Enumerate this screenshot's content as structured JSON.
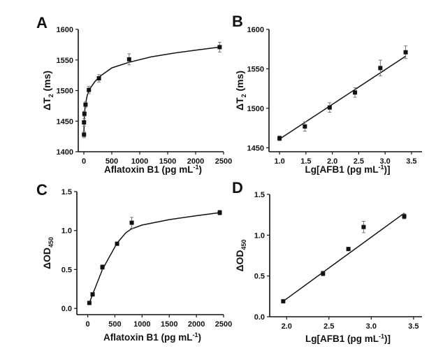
{
  "chart_data": [
    {
      "panel": "A",
      "type": "scatter",
      "xlabel": "Aflatoxin B1 (pg mL",
      "xlabel_sup": "-1",
      "xlabel_end": ")",
      "ylabel": "ΔT",
      "ylabel_sub": "2",
      "ylabel_end": " (ms)",
      "xlim": [
        -100,
        2500
      ],
      "ylim": [
        1400,
        1600
      ],
      "xticks": [
        0,
        500,
        1000,
        1500,
        2000,
        2500
      ],
      "yticks": [
        1400,
        1450,
        1500,
        1550,
        1600
      ],
      "points": [
        {
          "x": 3.3,
          "y": 1428,
          "err": 5
        },
        {
          "x": 3.3,
          "y": 1448,
          "err": 6
        },
        {
          "x": 10,
          "y": 1462,
          "err": 4
        },
        {
          "x": 30,
          "y": 1477,
          "err": 5
        },
        {
          "x": 90,
          "y": 1501,
          "err": 6
        },
        {
          "x": 270,
          "y": 1520,
          "err": 6
        },
        {
          "x": 810,
          "y": 1551,
          "err": 9
        },
        {
          "x": 2430,
          "y": 1571,
          "err": 8
        }
      ],
      "fit": {
        "x": [
          0,
          10,
          30,
          60,
          100,
          200,
          300,
          500,
          800,
          1200,
          1600,
          2000,
          2430
        ],
        "y": [
          1426,
          1462,
          1478,
          1492,
          1502,
          1515,
          1524,
          1537,
          1546,
          1555,
          1561,
          1566,
          1571
        ]
      }
    },
    {
      "panel": "B",
      "type": "scatter",
      "xlabel": "Lg[AFB1 (pg mL",
      "xlabel_sup": "-1",
      "xlabel_end": ")]",
      "ylabel": "ΔT",
      "ylabel_sub": "2",
      "ylabel_end": " (ms)",
      "xlim": [
        0.8,
        3.7
      ],
      "ylim": [
        1445,
        1600
      ],
      "xticks": [
        1.0,
        1.5,
        2.0,
        2.5,
        3.0,
        3.5
      ],
      "yticks": [
        1450,
        1500,
        1550,
        1600
      ],
      "points": [
        {
          "x": 1.0,
          "y": 1462,
          "err": 3
        },
        {
          "x": 1.48,
          "y": 1477,
          "err": 6
        },
        {
          "x": 1.95,
          "y": 1501,
          "err": 6
        },
        {
          "x": 2.43,
          "y": 1520,
          "err": 6
        },
        {
          "x": 2.91,
          "y": 1551,
          "err": 10
        },
        {
          "x": 3.39,
          "y": 1571,
          "err": 8
        }
      ],
      "fit": {
        "x": [
          1.0,
          3.39
        ],
        "y": [
          1461,
          1566
        ]
      }
    },
    {
      "panel": "C",
      "type": "scatter",
      "xlabel": "Aflatoxin B1 (pg mL",
      "xlabel_sup": "-1",
      "xlabel_end": ")",
      "ylabel": "ΔOD",
      "ylabel_sub": "450",
      "ylabel_end": "",
      "xlim": [
        -200,
        2500
      ],
      "ylim": [
        -0.08,
        1.5
      ],
      "xticks": [
        0,
        500,
        1000,
        1500,
        2000,
        2500
      ],
      "yticks": [
        0.0,
        0.5,
        1.0,
        1.5
      ],
      "points": [
        {
          "x": 30,
          "y": 0.07,
          "err": 0.01
        },
        {
          "x": 90,
          "y": 0.18,
          "err": 0.02
        },
        {
          "x": 270,
          "y": 0.53,
          "err": 0.03
        },
        {
          "x": 540,
          "y": 0.83,
          "err": 0.02
        },
        {
          "x": 810,
          "y": 1.1,
          "err": 0.07
        },
        {
          "x": 2430,
          "y": 1.23,
          "err": 0.03
        }
      ],
      "fit": {
        "x": [
          30,
          90,
          270,
          540,
          700,
          800,
          1000,
          1500,
          2000,
          2430
        ],
        "y": [
          0.07,
          0.18,
          0.5,
          0.84,
          0.97,
          1.02,
          1.07,
          1.14,
          1.19,
          1.23
        ]
      }
    },
    {
      "panel": "D",
      "type": "scatter",
      "xlabel": "Lg[AFB1 (pg mL",
      "xlabel_sup": "-1",
      "xlabel_end": ")]",
      "ylabel": "ΔOD",
      "ylabel_sub": "450",
      "ylabel_end": "",
      "xlim": [
        1.8,
        3.6
      ],
      "ylim": [
        0.0,
        1.5
      ],
      "xticks": [
        2.0,
        2.5,
        3.0,
        3.5
      ],
      "yticks": [
        0.0,
        0.5,
        1.0,
        1.5
      ],
      "points": [
        {
          "x": 1.96,
          "y": 0.19,
          "err": 0.01
        },
        {
          "x": 2.43,
          "y": 0.53,
          "err": 0.03
        },
        {
          "x": 2.73,
          "y": 0.83,
          "err": 0.02
        },
        {
          "x": 2.91,
          "y": 1.1,
          "err": 0.07
        },
        {
          "x": 3.39,
          "y": 1.23,
          "err": 0.03
        }
      ],
      "fit": {
        "x": [
          1.96,
          3.39
        ],
        "y": [
          0.19,
          1.27
        ]
      }
    }
  ]
}
